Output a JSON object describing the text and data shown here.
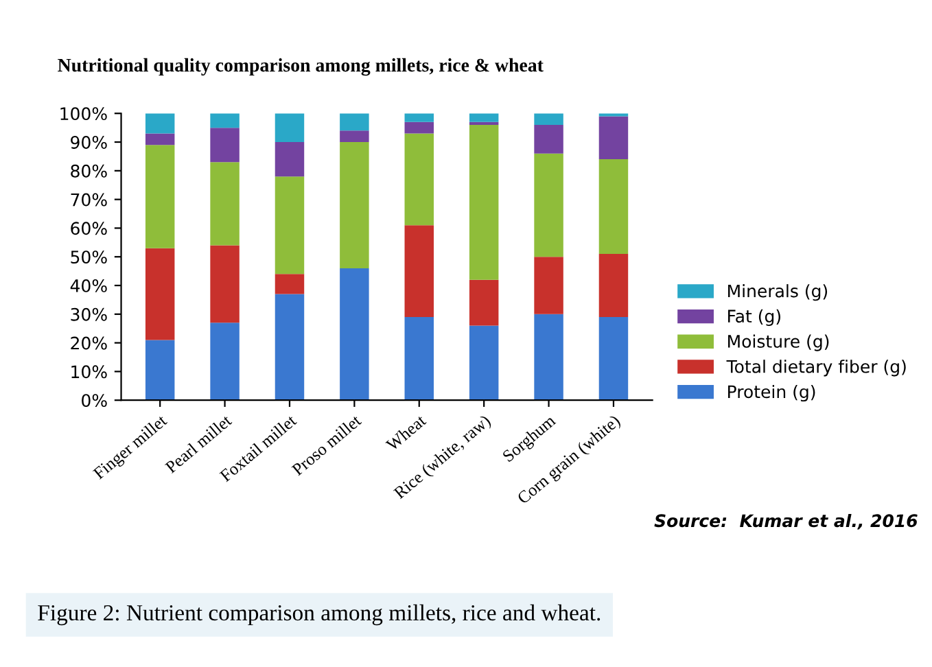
{
  "chart_data": {
    "type": "bar",
    "stacked": true,
    "title": "Nutritional quality comparison among millets, rice & wheat",
    "categories": [
      "Finger millet",
      "Pearl millet",
      "Foxtail millet",
      "Proso millet",
      "Wheat",
      "Rice (white, raw)",
      "Sorghum",
      "Corn grain (white)"
    ],
    "series": [
      {
        "name": "Protein (g)",
        "color": "#3a78d0",
        "values": [
          21,
          27,
          37,
          46,
          29,
          26,
          30,
          29
        ]
      },
      {
        "name": "Total dietary fiber (g)",
        "color": "#c8312c",
        "values": [
          32,
          27,
          7,
          0,
          32,
          16,
          20,
          22
        ]
      },
      {
        "name": "Moisture (g)",
        "color": "#8fbd3a",
        "values": [
          36,
          29,
          34,
          44,
          32,
          54,
          36,
          33
        ]
      },
      {
        "name": "Fat (g)",
        "color": "#7343a0",
        "values": [
          4,
          12,
          12,
          4,
          4,
          1,
          10,
          15
        ]
      },
      {
        "name": "Minerals (g)",
        "color": "#2aa8c8",
        "values": [
          7,
          5,
          10,
          6,
          3,
          3,
          4,
          1
        ]
      }
    ],
    "ylim": [
      0,
      100
    ],
    "yticks": [
      {
        "value": 0,
        "label": "0%"
      },
      {
        "value": 10,
        "label": "10%"
      },
      {
        "value": 20,
        "label": "20%"
      },
      {
        "value": 30,
        "label": "30%"
      },
      {
        "value": 40,
        "label": "40%"
      },
      {
        "value": 50,
        "label": "50%"
      },
      {
        "value": 60,
        "label": "60%"
      },
      {
        "value": 70,
        "label": "70%"
      },
      {
        "value": 80,
        "label": "80%"
      },
      {
        "value": 90,
        "label": "90%"
      },
      {
        "value": 100,
        "label": "100%"
      }
    ],
    "grid": false,
    "legend": "right",
    "annotations": [
      "Source:  Kumar et al., 2016",
      "Figure 2: Nutrient comparison among millets, rice and wheat."
    ]
  }
}
